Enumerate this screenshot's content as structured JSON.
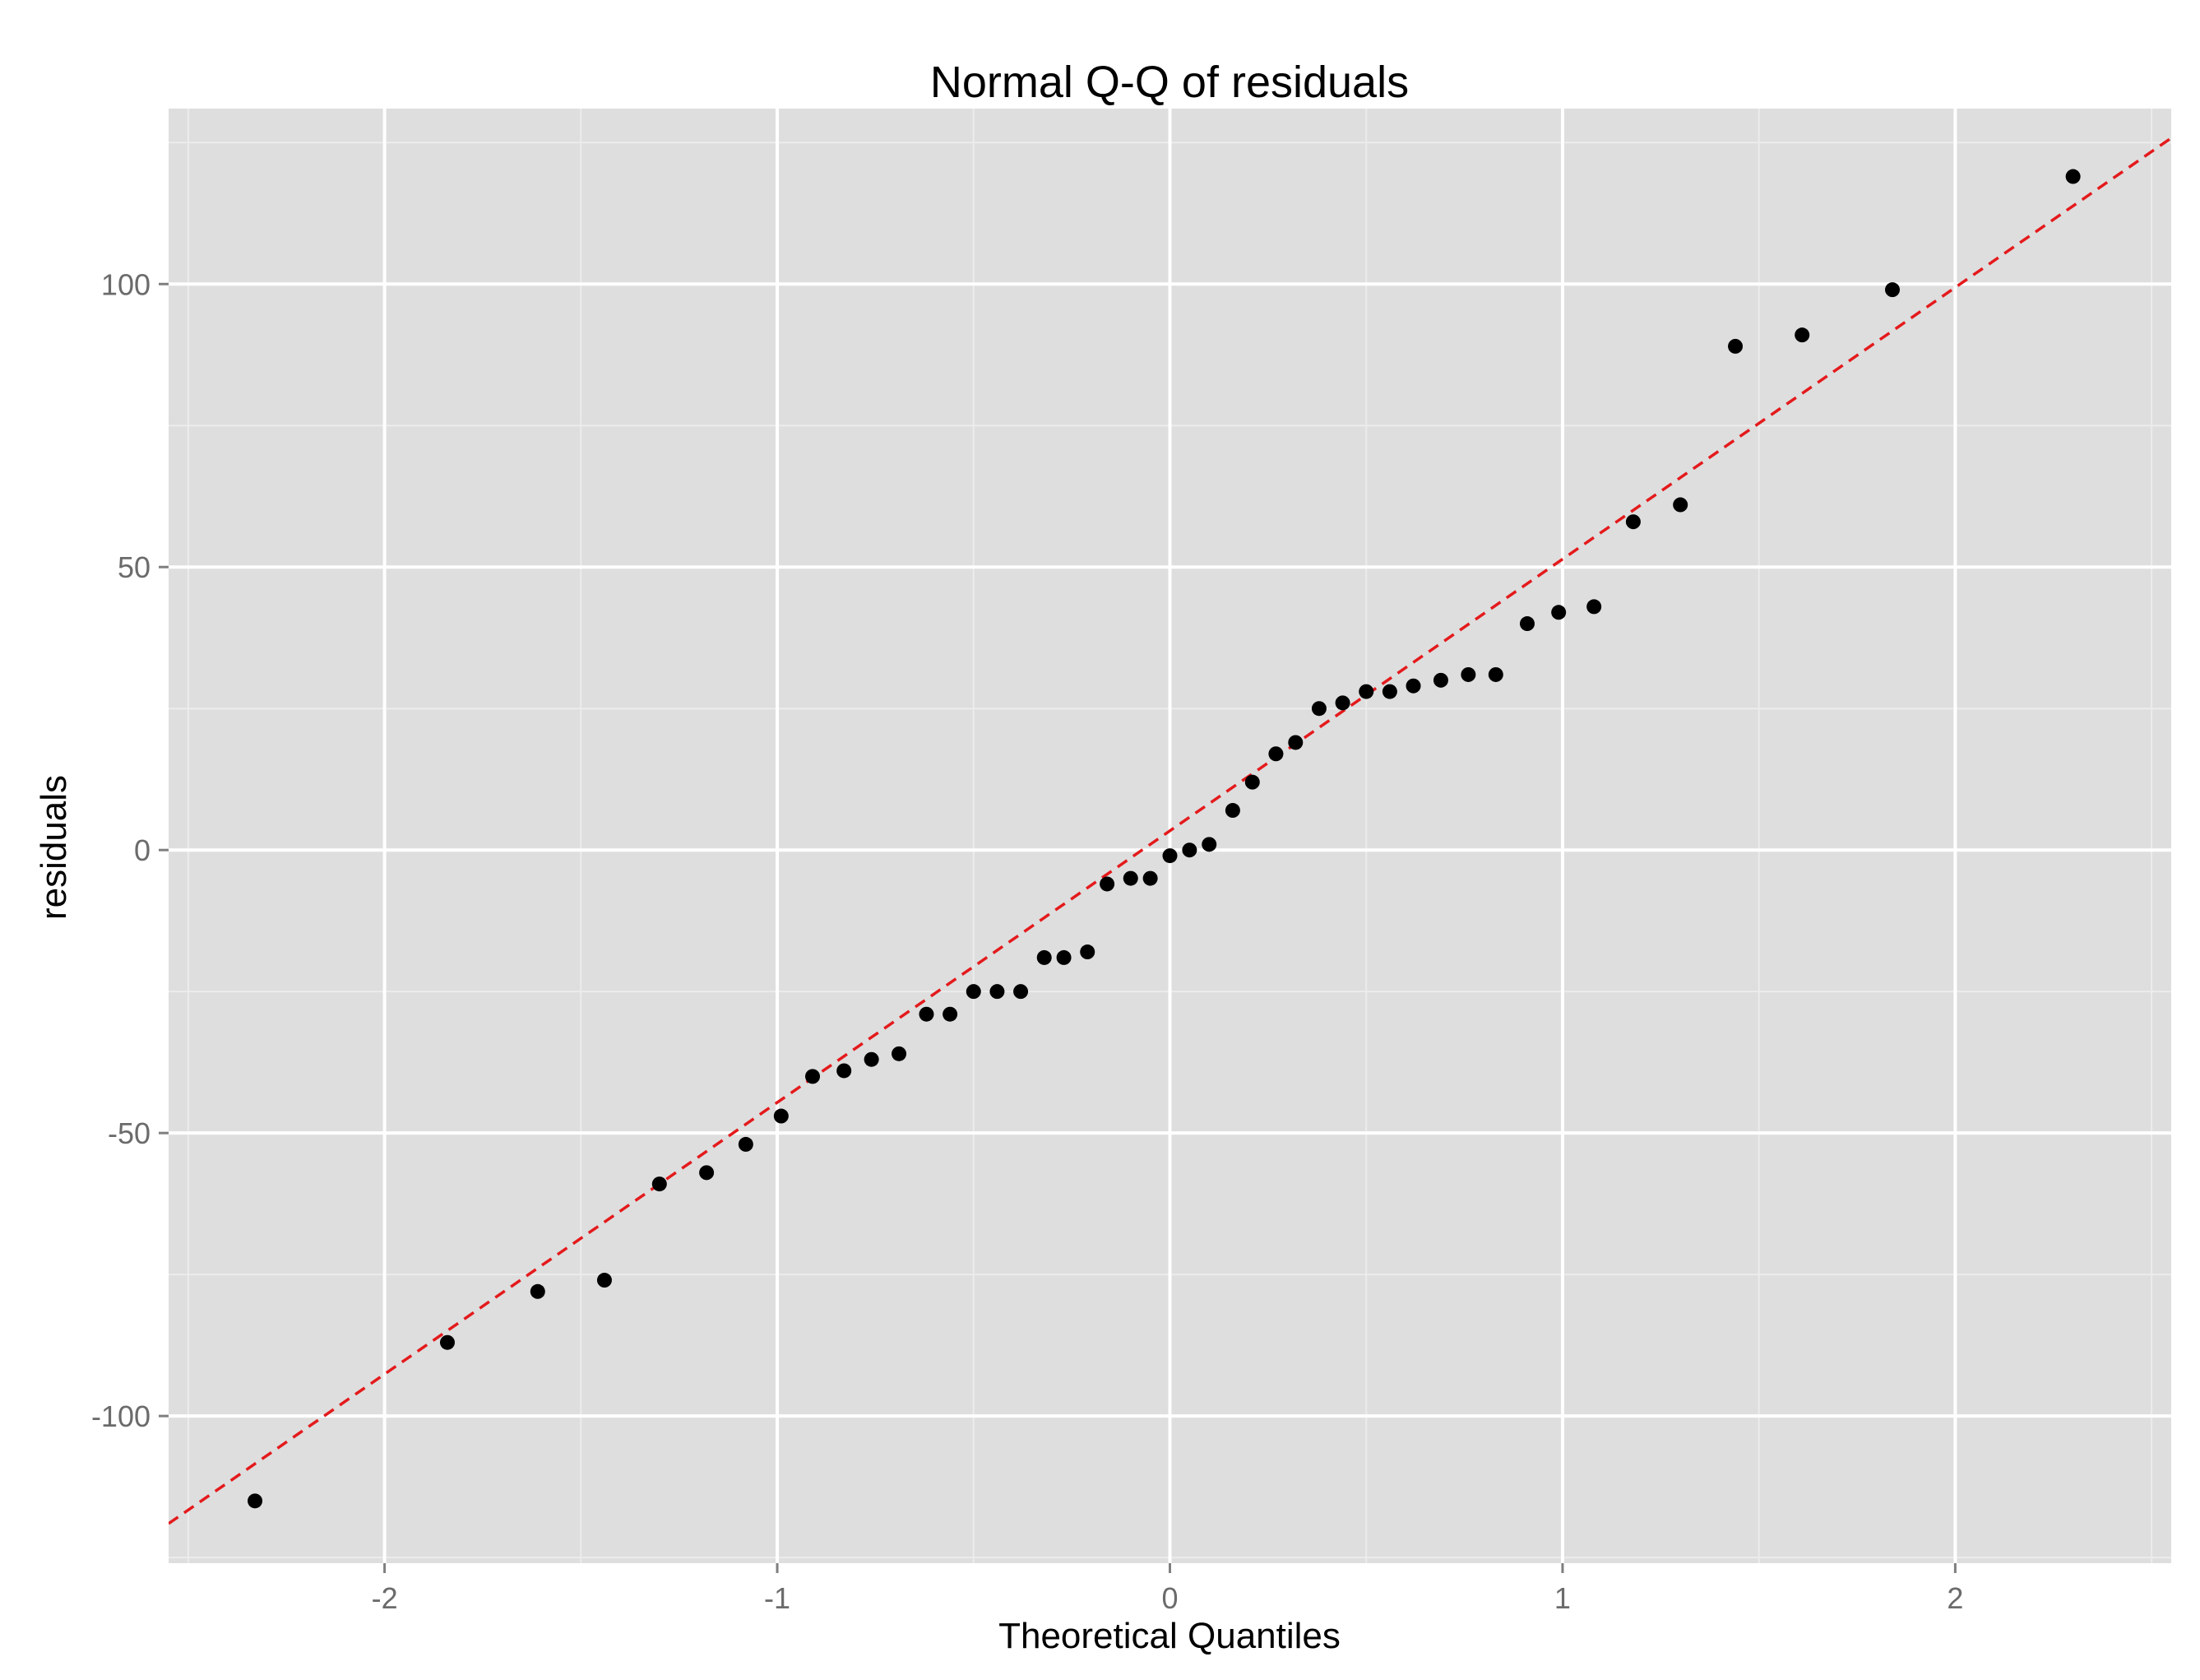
{
  "chart_data": {
    "type": "scatter",
    "title": "Normal Q-Q of residuals",
    "xlabel": "Theoretical Quantiles",
    "ylabel": "residuals",
    "xlim": [
      -2.55,
      2.55
    ],
    "ylim": [
      -126,
      131
    ],
    "x_ticks": [
      -2,
      -1,
      0,
      1,
      2
    ],
    "x_tick_labels": [
      "-2",
      "-1",
      "0",
      "1",
      "2"
    ],
    "y_ticks": [
      -100,
      -50,
      0,
      50,
      100
    ],
    "y_tick_labels": [
      "-100",
      "-50",
      "0",
      "50",
      "100"
    ],
    "grid": true,
    "legend": "none",
    "colors": {
      "panel": "#dedede",
      "grid_major": "#ffffff",
      "grid_minor": "#ececec",
      "points": "#000000",
      "reference_line": "#e41a1c",
      "tick_text": "#6b6b6b",
      "title_text": "#000000"
    },
    "reference_line": {
      "intercept": 3.4,
      "slope": 48.0,
      "style": "dashed"
    },
    "points": [
      {
        "x": -2.33,
        "y": -115
      },
      {
        "x": -1.84,
        "y": -87
      },
      {
        "x": -1.61,
        "y": -78
      },
      {
        "x": -1.44,
        "y": -76
      },
      {
        "x": -1.3,
        "y": -59
      },
      {
        "x": -1.18,
        "y": -57
      },
      {
        "x": -1.08,
        "y": -52
      },
      {
        "x": -0.99,
        "y": -47
      },
      {
        "x": -0.91,
        "y": -40
      },
      {
        "x": -0.83,
        "y": -39
      },
      {
        "x": -0.76,
        "y": -37
      },
      {
        "x": -0.69,
        "y": -36
      },
      {
        "x": -0.62,
        "y": -29
      },
      {
        "x": -0.56,
        "y": -29
      },
      {
        "x": -0.5,
        "y": -25
      },
      {
        "x": -0.44,
        "y": -25
      },
      {
        "x": -0.38,
        "y": -25
      },
      {
        "x": -0.32,
        "y": -19
      },
      {
        "x": -0.27,
        "y": -19
      },
      {
        "x": -0.21,
        "y": -18
      },
      {
        "x": -0.16,
        "y": -6
      },
      {
        "x": -0.1,
        "y": -5
      },
      {
        "x": -0.05,
        "y": -5
      },
      {
        "x": 0.0,
        "y": -1
      },
      {
        "x": 0.05,
        "y": 0
      },
      {
        "x": 0.1,
        "y": 1
      },
      {
        "x": 0.16,
        "y": 7
      },
      {
        "x": 0.21,
        "y": 12
      },
      {
        "x": 0.27,
        "y": 17
      },
      {
        "x": 0.32,
        "y": 19
      },
      {
        "x": 0.38,
        "y": 25
      },
      {
        "x": 0.44,
        "y": 26
      },
      {
        "x": 0.5,
        "y": 28
      },
      {
        "x": 0.56,
        "y": 28
      },
      {
        "x": 0.62,
        "y": 29
      },
      {
        "x": 0.69,
        "y": 30
      },
      {
        "x": 0.76,
        "y": 31
      },
      {
        "x": 0.83,
        "y": 31
      },
      {
        "x": 0.91,
        "y": 40
      },
      {
        "x": 0.99,
        "y": 42
      },
      {
        "x": 1.08,
        "y": 43
      },
      {
        "x": 1.18,
        "y": 58
      },
      {
        "x": 1.3,
        "y": 61
      },
      {
        "x": 1.44,
        "y": 89
      },
      {
        "x": 1.61,
        "y": 91
      },
      {
        "x": 1.84,
        "y": 99
      },
      {
        "x": 2.3,
        "y": 119
      }
    ]
  }
}
